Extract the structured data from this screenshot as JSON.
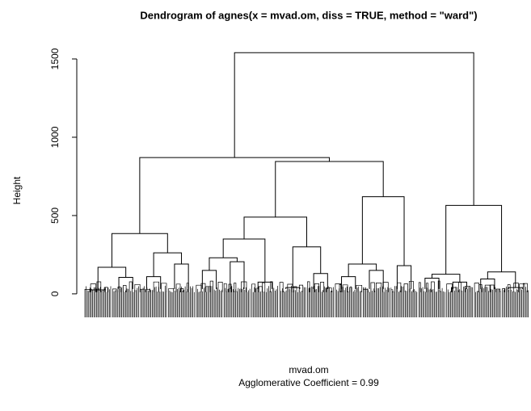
{
  "chart_data": {
    "type": "dendrogram",
    "title": "Dendrogram of  agnes(x = mvad.om, diss = TRUE, method = \"ward\")",
    "y_label": "Height",
    "x_label": "mvad.om",
    "subtitle": "Agglomerative Coefficient =  0.99",
    "ylim": [
      -150,
      1600
    ],
    "yticks": [
      0,
      500,
      1000,
      1500
    ],
    "color": "#000000",
    "tree": {
      "height": 1540,
      "children": [
        {
          "height": 870,
          "children": [
            {
              "height": 385,
              "children": [
                {
                  "height": 170,
                  "children": [
                    {
                      "height": 25
                    },
                    {
                      "height": 105
                    }
                  ]
                },
                {
                  "height": 262,
                  "children": [
                    {
                      "height": 110
                    },
                    {
                      "height": 190
                    }
                  ]
                }
              ]
            },
            {
              "height": 845,
              "children": [
                {
                  "height": 490,
                  "children": [
                    {
                      "height": 350,
                      "children": [
                        {
                          "height": 230,
                          "children": [
                            {
                              "height": 150
                            },
                            {
                              "height": 205
                            }
                          ]
                        },
                        {
                          "height": 75
                        }
                      ]
                    },
                    {
                      "height": 300,
                      "children": [
                        {
                          "height": 40
                        },
                        {
                          "height": 130
                        }
                      ]
                    }
                  ]
                },
                {
                  "height": 620,
                  "children": [
                    {
                      "height": 190,
                      "children": [
                        {
                          "height": 110
                        },
                        {
                          "height": 150
                        }
                      ]
                    },
                    {
                      "height": 180
                    }
                  ]
                }
              ]
            }
          ]
        },
        {
          "height": 565,
          "children": [
            {
              "height": 125,
              "children": [
                {
                  "height": 100
                },
                {
                  "height": 75
                }
              ]
            },
            {
              "height": 140,
              "children": [
                {
                  "height": 95
                },
                {
                  "height": 40
                }
              ]
            }
          ]
        }
      ]
    }
  }
}
